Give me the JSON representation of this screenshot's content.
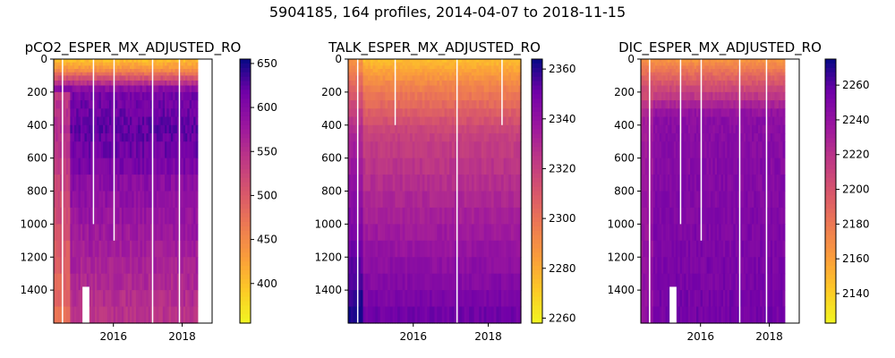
{
  "figure": {
    "suptitle": "5904185, 164 profiles, 2014-04-07 to 2018-11-15"
  },
  "chart_data": [
    {
      "type": "heatmap",
      "title": "pCO2_ESPER_MX_ADJUSTED_RO",
      "xlabel": "",
      "ylabel": "",
      "x_range": [
        "2014-04-07",
        "2018-11-15"
      ],
      "x_ticks": [
        "2016",
        "2018"
      ],
      "ylim": [
        1600,
        0
      ],
      "y_ticks": [
        0,
        200,
        400,
        600,
        800,
        1000,
        1200,
        1400
      ],
      "colormap": "plasma_r",
      "colorbar": {
        "min": 355,
        "max": 655,
        "ticks": [
          400,
          450,
          500,
          550,
          600,
          650
        ]
      },
      "pattern": "low values (yellow, ~400) near surface 0-150 m; high values (~620-650, dark purple) in 200-700 m band; mid-range (~540-600) below 800 m; data ends mid-2018"
    },
    {
      "type": "heatmap",
      "title": "TALK_ESPER_MX_ADJUSTED_RO",
      "xlabel": "",
      "ylabel": "",
      "x_range": [
        "2014-04-07",
        "2018-11-15"
      ],
      "x_ticks": [
        "2016",
        "2018"
      ],
      "ylim": [
        1600,
        0
      ],
      "y_ticks": [
        0,
        200,
        400,
        600,
        800,
        1000,
        1200,
        1400
      ],
      "colormap": "plasma_r",
      "colorbar": {
        "min": 2258,
        "max": 2364,
        "ticks": [
          2260,
          2280,
          2300,
          2320,
          2340,
          2360
        ]
      },
      "pattern": "low values (~2270-2290) near surface; increasing with depth to ~2350-2360 below 1200 m"
    },
    {
      "type": "heatmap",
      "title": "DIC_ESPER_MX_ADJUSTED_RO",
      "xlabel": "",
      "ylabel": "",
      "x_range": [
        "2014-04-07",
        "2018-11-15"
      ],
      "x_ticks": [
        "2016",
        "2018"
      ],
      "ylim": [
        1600,
        0
      ],
      "y_ticks": [
        0,
        200,
        400,
        600,
        800,
        1000,
        1200,
        1400
      ],
      "colormap": "plasma_r",
      "colorbar": {
        "min": 2123,
        "max": 2275,
        "ticks": [
          2140,
          2160,
          2180,
          2200,
          2220,
          2240,
          2260
        ]
      },
      "pattern": "low values (~2160-2190) near surface; ~2240-2260 below 300 m; data ends mid-2018"
    }
  ]
}
